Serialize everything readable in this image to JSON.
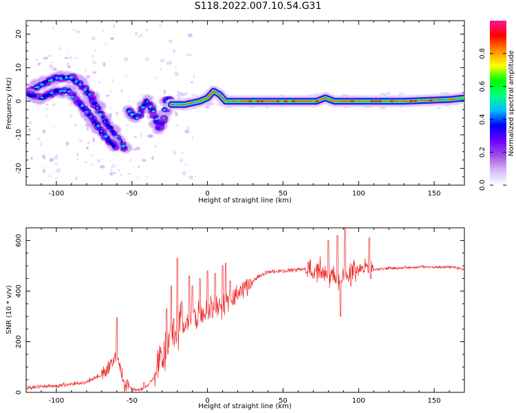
{
  "title": "S118.2022.007.10.54.G31",
  "chart_data": [
    {
      "type": "heatmap",
      "xlabel": "Height of straight line (km)",
      "ylabel": "Frequency (Hz)",
      "xlim": [
        -120,
        170
      ],
      "ylim": [
        -25,
        24
      ],
      "x_ticks": [
        -100,
        -50,
        0,
        50,
        100,
        150
      ],
      "y_ticks": [
        -20,
        -10,
        0,
        10,
        20
      ],
      "colorbar": {
        "label": "Normalized spectral amplitude",
        "range": [
          0,
          1
        ],
        "ticks": [
          0.0,
          0.2,
          0.4,
          0.6,
          0.8
        ],
        "colors": [
          "#ffffff",
          "#d7b8f5",
          "#9b4dea",
          "#6a00ff",
          "#0000ff",
          "#00bfff",
          "#00ff7f",
          "#00ff00",
          "#ffff00",
          "#ff8c00",
          "#ff0000",
          "#ff1493"
        ]
      },
      "ridges": [
        {
          "name": "upper",
          "points": [
            [
              -118,
              3
            ],
            [
              -110,
              5
            ],
            [
              -100,
              7
            ],
            [
              -90,
              7
            ],
            [
              -84,
              5
            ],
            [
              -78,
              2
            ],
            [
              -73,
              -2
            ],
            [
              -68,
              -6
            ],
            [
              -63,
              -9
            ],
            [
              -58,
              -12
            ],
            [
              -54,
              -15
            ]
          ]
        },
        {
          "name": "lower",
          "points": [
            [
              -118,
              2
            ],
            [
              -110,
              1
            ],
            [
              -100,
              3
            ],
            [
              -92,
              3
            ],
            [
              -86,
              0
            ],
            [
              -80,
              -3
            ],
            [
              -75,
              -6
            ],
            [
              -70,
              -9
            ],
            [
              -65,
              -12
            ],
            [
              -60,
              -14
            ]
          ]
        },
        {
          "name": "middle",
          "points": [
            [
              -52,
              -3
            ],
            [
              -47,
              -5
            ],
            [
              -43,
              -2
            ],
            [
              -40,
              0
            ],
            [
              -36,
              -3
            ],
            [
              -32,
              -8
            ],
            [
              -29,
              -5
            ],
            [
              -27,
              0
            ],
            [
              -24,
              1
            ]
          ]
        },
        {
          "name": "main",
          "points": [
            [
              -24,
              -1
            ],
            [
              -15,
              -1
            ],
            [
              -5,
              0
            ],
            [
              0,
              1
            ],
            [
              4,
              3
            ],
            [
              8,
              2
            ],
            [
              12,
              0
            ],
            [
              20,
              0
            ],
            [
              60,
              0
            ],
            [
              72,
              0
            ],
            [
              78,
              1
            ],
            [
              84,
              0
            ],
            [
              100,
              0
            ],
            [
              130,
              0
            ],
            [
              160,
              0.5
            ],
            [
              170,
              1
            ]
          ]
        }
      ]
    },
    {
      "type": "line",
      "xlabel": "Height of straight line (km)",
      "ylabel": "SNR (10 * v/v)",
      "xlim": [
        -120,
        170
      ],
      "ylim": [
        0,
        650
      ],
      "x_ticks": [
        -100,
        -50,
        0,
        50,
        100,
        150
      ],
      "y_ticks": [
        0,
        200,
        400,
        600
      ],
      "color": "#ee2222",
      "x": [
        -120,
        -100,
        -80,
        -70,
        -65,
        -60,
        -57,
        -55,
        -50,
        -45,
        -40,
        -35,
        -30,
        -25,
        -20,
        -15,
        -10,
        -5,
        0,
        5,
        10,
        15,
        20,
        25,
        30,
        35,
        40,
        50,
        60,
        70,
        75,
        80,
        85,
        88,
        90,
        95,
        100,
        105,
        110,
        120,
        140,
        160,
        170
      ],
      "y": [
        20,
        25,
        40,
        70,
        100,
        150,
        80,
        30,
        15,
        10,
        25,
        60,
        140,
        220,
        260,
        270,
        290,
        300,
        330,
        330,
        350,
        370,
        390,
        420,
        440,
        460,
        475,
        480,
        485,
        490,
        480,
        470,
        450,
        430,
        460,
        480,
        490,
        490,
        485,
        490,
        495,
        495,
        490
      ],
      "spikes": [
        [
          -60,
          295
        ],
        [
          -53,
          50
        ],
        [
          -42,
          40
        ],
        [
          -27,
          330
        ],
        [
          -24,
          420
        ],
        [
          -20,
          530
        ],
        [
          -17,
          360
        ],
        [
          -12,
          460
        ],
        [
          -10,
          420
        ],
        [
          -5,
          450
        ],
        [
          0,
          480
        ],
        [
          5,
          470
        ],
        [
          10,
          500
        ],
        [
          12,
          510
        ],
        [
          15,
          440
        ],
        [
          70,
          450
        ],
        [
          80,
          600
        ],
        [
          86,
          620
        ],
        [
          88,
          300
        ],
        [
          91,
          650
        ],
        [
          95,
          420
        ],
        [
          107,
          610
        ],
        [
          108,
          450
        ]
      ]
    }
  ]
}
